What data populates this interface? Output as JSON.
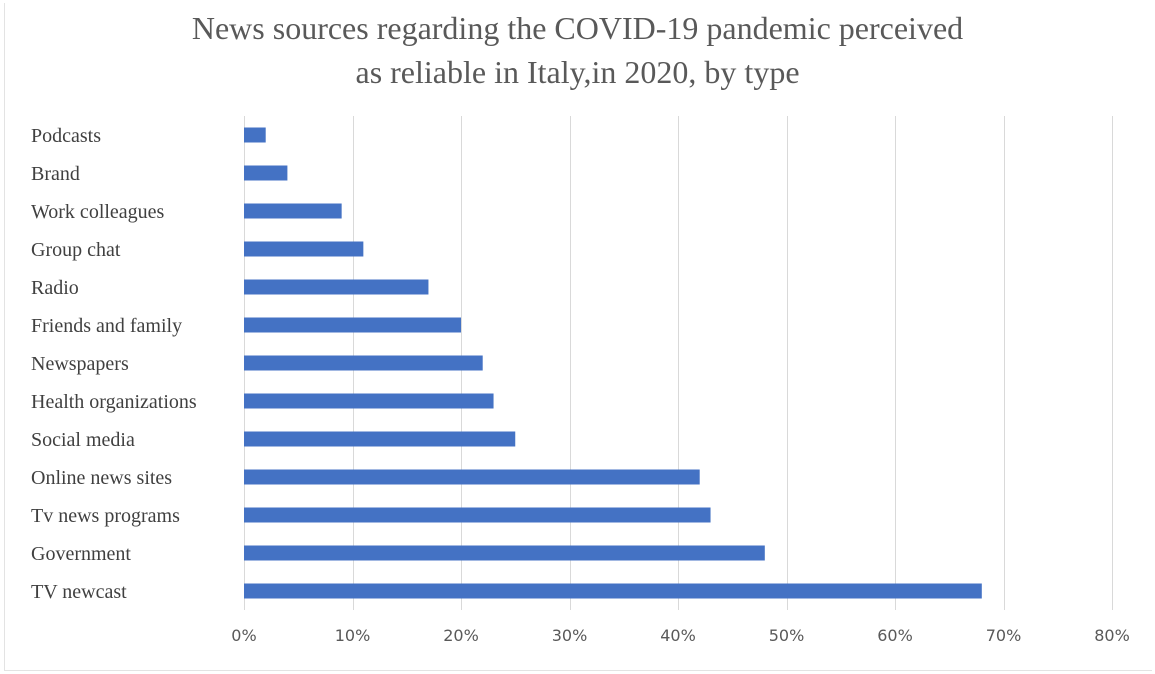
{
  "chart_data": {
    "type": "bar",
    "orientation": "horizontal",
    "title_line1": "News sources regarding the COVID-19 pandemic perceived",
    "title_line2": "as reliable in Italy,in 2020, by type",
    "xlabel": "",
    "ylabel": "",
    "categories": [
      "Podcasts",
      "Brand",
      "Work colleagues",
      "Group chat",
      "Radio",
      "Friends and family",
      "Newspapers",
      "Health organizations",
      "Social media",
      "Online news sites",
      "Tv news programs",
      "Government",
      "TV newcast"
    ],
    "values": [
      2,
      4,
      9,
      11,
      17,
      20,
      22,
      23,
      25,
      42,
      43,
      48,
      68
    ],
    "xlim": [
      0,
      80
    ],
    "xticks": [
      0,
      10,
      20,
      30,
      40,
      50,
      60,
      70,
      80
    ],
    "xtick_labels": [
      "0%",
      "10%",
      "20%",
      "30%",
      "40%",
      "50%",
      "60%",
      "70%",
      "80%"
    ],
    "grid": "vertical",
    "legend": "none",
    "bar_color": "#4472C4",
    "grid_color": "#d9d9d9"
  }
}
